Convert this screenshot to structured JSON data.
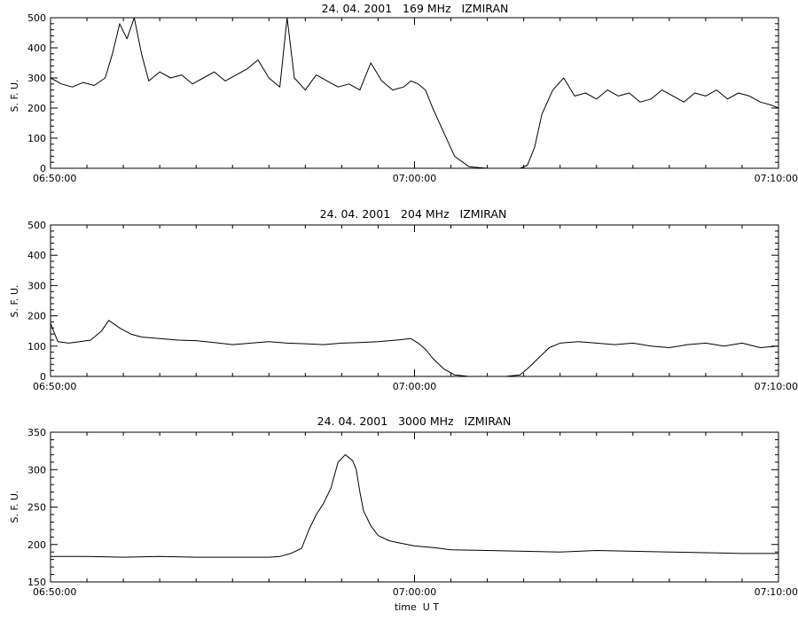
{
  "chart_data": [
    {
      "type": "line",
      "title": "24. 04. 2001   169 MHz   IZMIRAN",
      "ylabel": "S. F. U.",
      "xlabel": "",
      "ylim": [
        0,
        500
      ],
      "yticks": [
        0,
        100,
        200,
        300,
        400,
        500
      ],
      "xlim_minutes": [
        0,
        20
      ],
      "xticks": [
        {
          "value": 0,
          "label": "06:50:00"
        },
        {
          "value": 10,
          "label": "07:00:00"
        },
        {
          "value": 20,
          "label": "07:10:00"
        }
      ],
      "grid": false,
      "series": [
        {
          "x_minutes": [
            0,
            0.3,
            0.6,
            0.9,
            1.2,
            1.5,
            1.7,
            1.9,
            2.1,
            2.3,
            2.5,
            2.7,
            3.0,
            3.3,
            3.6,
            3.9,
            4.2,
            4.5,
            4.8,
            5.1,
            5.4,
            5.7,
            6.0,
            6.3,
            6.5,
            6.7,
            7.0,
            7.3,
            7.6,
            7.9,
            8.2,
            8.5,
            8.8,
            9.1,
            9.4,
            9.7,
            9.9,
            10.1,
            10.3,
            10.5,
            10.8,
            11.1,
            11.5,
            12.0,
            12.5,
            12.9,
            13.1,
            13.3,
            13.5,
            13.8,
            14.1,
            14.4,
            14.7,
            15.0,
            15.3,
            15.6,
            15.9,
            16.2,
            16.5,
            16.8,
            17.1,
            17.4,
            17.7,
            18.0,
            18.3,
            18.6,
            18.9,
            19.2,
            19.5,
            19.8,
            20.0
          ],
          "y": [
            300,
            280,
            270,
            285,
            275,
            300,
            380,
            480,
            430,
            500,
            380,
            290,
            320,
            300,
            310,
            280,
            300,
            320,
            290,
            310,
            330,
            360,
            300,
            270,
            500,
            300,
            260,
            310,
            290,
            270,
            280,
            260,
            350,
            290,
            260,
            270,
            290,
            280,
            260,
            200,
            120,
            40,
            5,
            0,
            0,
            0,
            10,
            70,
            180,
            260,
            300,
            240,
            250,
            230,
            260,
            240,
            250,
            220,
            230,
            260,
            240,
            220,
            250,
            240,
            260,
            230,
            250,
            240,
            220,
            210,
            200
          ]
        }
      ]
    },
    {
      "type": "line",
      "title": "24. 04. 2001   204 MHz   IZMIRAN",
      "ylabel": "S. F. U.",
      "xlabel": "",
      "ylim": [
        0,
        500
      ],
      "yticks": [
        0,
        100,
        200,
        300,
        400,
        500
      ],
      "xlim_minutes": [
        0,
        20
      ],
      "xticks": [
        {
          "value": 0,
          "label": "06:50:00"
        },
        {
          "value": 10,
          "label": "07:00:00"
        },
        {
          "value": 20,
          "label": "07:10:00"
        }
      ],
      "grid": false,
      "series": [
        {
          "x_minutes": [
            0,
            0.2,
            0.5,
            0.8,
            1.1,
            1.4,
            1.6,
            1.9,
            2.2,
            2.5,
            3.0,
            3.5,
            4.0,
            4.5,
            5.0,
            5.5,
            6.0,
            6.5,
            7.0,
            7.5,
            8.0,
            8.5,
            9.0,
            9.5,
            9.9,
            10.1,
            10.3,
            10.5,
            10.8,
            11.1,
            11.5,
            12.0,
            12.5,
            12.9,
            13.1,
            13.4,
            13.7,
            14.0,
            14.5,
            15.0,
            15.5,
            16.0,
            16.5,
            17.0,
            17.5,
            18.0,
            18.5,
            19.0,
            19.5,
            20.0
          ],
          "y": [
            175,
            115,
            110,
            115,
            120,
            150,
            185,
            160,
            140,
            130,
            125,
            120,
            118,
            112,
            105,
            110,
            115,
            110,
            108,
            105,
            110,
            112,
            115,
            120,
            125,
            110,
            90,
            60,
            25,
            5,
            0,
            0,
            0,
            5,
            25,
            60,
            95,
            110,
            115,
            110,
            105,
            110,
            100,
            95,
            105,
            110,
            100,
            110,
            95,
            100
          ]
        }
      ]
    },
    {
      "type": "line",
      "title": "24. 04. 2001   3000 MHz   IZMIRAN",
      "ylabel": "S. F. U.",
      "xlabel": "time  U T",
      "ylim": [
        150,
        350
      ],
      "yticks": [
        150,
        200,
        250,
        300,
        350
      ],
      "xlim_minutes": [
        0,
        20
      ],
      "xticks": [
        {
          "value": 0,
          "label": "06:50:00"
        },
        {
          "value": 10,
          "label": "07:00:00"
        },
        {
          "value": 20,
          "label": "07:10:00"
        }
      ],
      "grid": false,
      "series": [
        {
          "x_minutes": [
            0,
            1,
            2,
            3,
            4,
            5,
            6,
            6.3,
            6.6,
            6.9,
            7.1,
            7.3,
            7.5,
            7.7,
            7.9,
            8.1,
            8.2,
            8.3,
            8.4,
            8.5,
            8.6,
            8.8,
            9.0,
            9.3,
            9.6,
            10.0,
            10.5,
            11.0,
            12.0,
            13.0,
            14.0,
            15.0,
            16.0,
            17.0,
            18.0,
            19.0,
            20.0
          ],
          "y": [
            184,
            184,
            183,
            184,
            183,
            183,
            183,
            184,
            188,
            195,
            220,
            240,
            255,
            275,
            310,
            320,
            316,
            312,
            300,
            270,
            245,
            225,
            212,
            205,
            202,
            198,
            196,
            193,
            192,
            191,
            190,
            192,
            191,
            190,
            189,
            188,
            188
          ]
        }
      ]
    }
  ]
}
